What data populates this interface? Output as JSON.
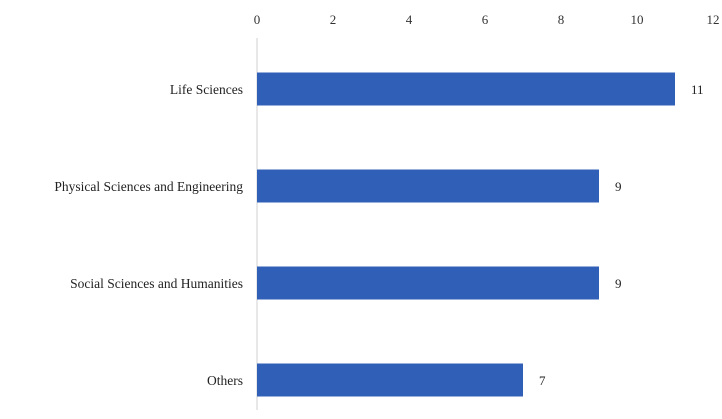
{
  "chart_data": {
    "type": "bar",
    "orientation": "horizontal",
    "title": "",
    "xlabel": "",
    "ylabel": "",
    "categories": [
      "Life Sciences",
      "Physical Sciences and Engineering",
      "Social Sciences and Humanities",
      "Others"
    ],
    "values": [
      11,
      9,
      9,
      7
    ],
    "data_labels": [
      "11",
      "9",
      "9",
      "7"
    ],
    "xlim": [
      0,
      12
    ],
    "x_ticks": [
      0,
      2,
      4,
      6,
      8,
      10,
      12
    ],
    "x_tick_labels": [
      "0",
      "2",
      "4",
      "6",
      "8",
      "10",
      "12"
    ],
    "x_axis_position": "top",
    "grid": false,
    "legend": "none",
    "bar_color": "#2f5fb6",
    "axis_color": "#d0d0d0"
  }
}
